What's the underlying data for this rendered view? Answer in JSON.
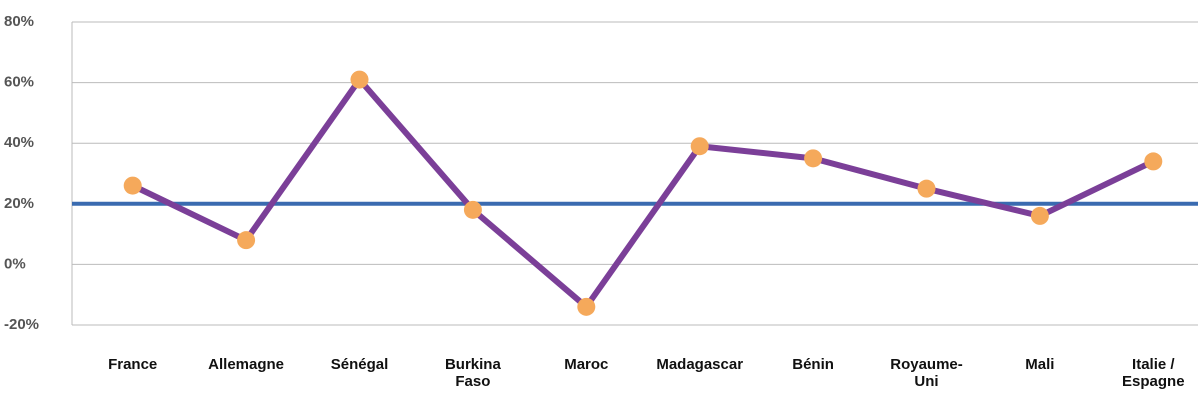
{
  "chart_data": {
    "type": "line",
    "categories": [
      "France",
      "Allemagne",
      "Sénégal",
      "Burkina Faso",
      "Maroc",
      "Madagascar",
      "Bénin",
      "Royaume-Uni",
      "Mali",
      "Italie / Espagne"
    ],
    "series": [
      {
        "color": "#7b3f98",
        "marker_color": "#f5a95b",
        "values": [
          26,
          8,
          61,
          18,
          -14,
          39,
          35,
          25,
          16,
          34
        ]
      }
    ],
    "reference_line": {
      "value": 20,
      "color": "#3a6bb0"
    },
    "ylim": [
      -20,
      80
    ],
    "yticks": [
      {
        "value": -20,
        "label": "-20%"
      },
      {
        "value": 0,
        "label": "0%"
      },
      {
        "value": 20,
        "label": "20%"
      },
      {
        "value": 40,
        "label": "40%"
      },
      {
        "value": 60,
        "label": "60%"
      },
      {
        "value": 80,
        "label": "80%"
      }
    ],
    "grid": true
  }
}
